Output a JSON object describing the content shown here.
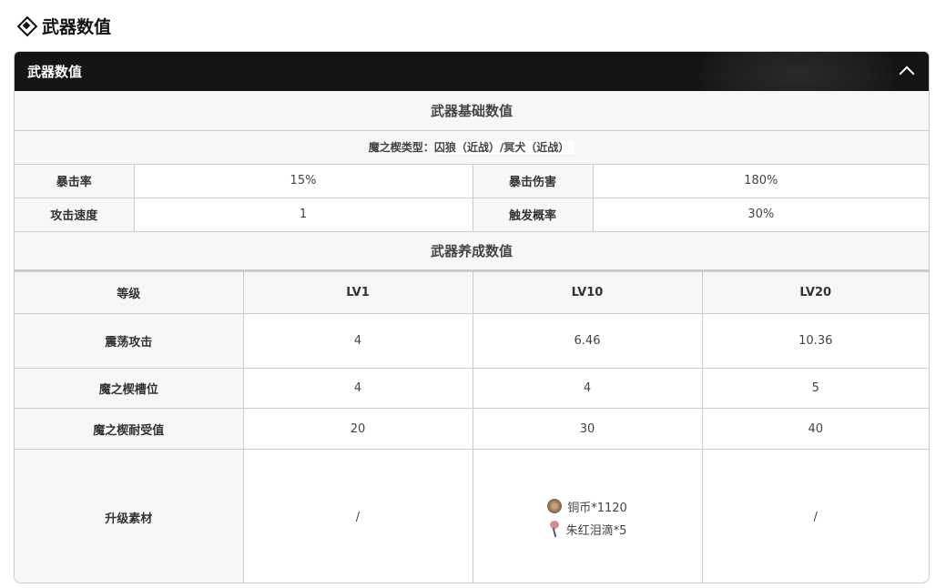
{
  "page_title": "武器数值",
  "panel": {
    "title": "武器数值",
    "collapse_icon": "chevron-up-icon"
  },
  "basic": {
    "title": "武器基础数值",
    "type_label": "魔之楔类型：",
    "type_value": "囚狼（近战）/冥犬（近战）",
    "rows": [
      [
        "暴击率",
        "15%",
        "暴击伤害",
        "180%"
      ],
      [
        "攻击速度",
        "1",
        "触发概率",
        "30%"
      ]
    ]
  },
  "growth": {
    "title": "武器养成数值",
    "headers": [
      "等级",
      "LV1",
      "LV10",
      "LV20"
    ],
    "rows": [
      [
        "震荡攻击",
        "4",
        "6.46",
        "10.36"
      ],
      [
        "魔之楔槽位",
        "4",
        "4",
        "5"
      ],
      [
        "魔之楔耐受值",
        "20",
        "30",
        "40"
      ]
    ],
    "materials": {
      "label": "升级素材",
      "lv1": "/",
      "lv10": [
        {
          "icon": "copper-coin-icon",
          "text": "铜币*1120"
        },
        {
          "icon": "crimson-tear-icon",
          "text": "朱红泪滴*5"
        }
      ],
      "lv20": "/"
    }
  }
}
